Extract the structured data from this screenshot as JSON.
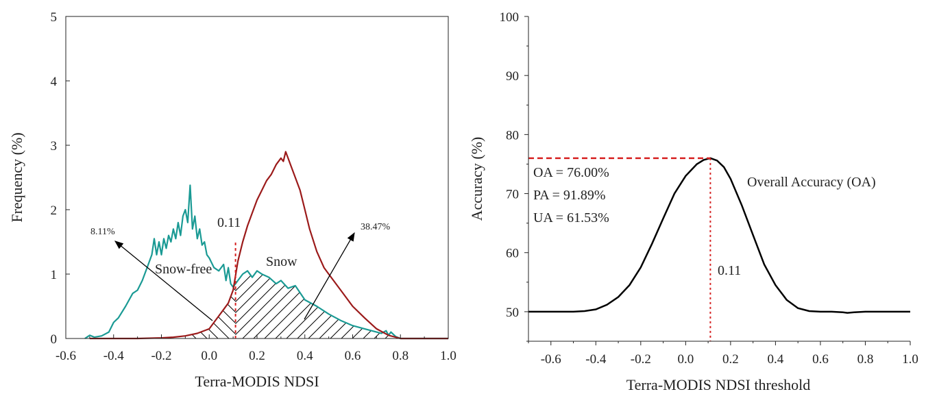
{
  "chart_data": [
    {
      "type": "line",
      "xlabel": "Terra-MODIS NDSI",
      "ylabel": "Frequency (%)",
      "xlim": [
        -0.6,
        1.0
      ],
      "ylim": [
        0,
        5
      ],
      "xticks": [
        "-0.6",
        "-0.4",
        "-0.2",
        "0.0",
        "0.2",
        "0.4",
        "0.6",
        "0.8",
        "1.0"
      ],
      "yticks": [
        "0",
        "1",
        "2",
        "3",
        "4",
        "5"
      ],
      "series": [
        {
          "name": "Snow-free",
          "color": "#1a9a94",
          "x": [
            -0.52,
            -0.5,
            -0.48,
            -0.45,
            -0.42,
            -0.4,
            -0.38,
            -0.35,
            -0.32,
            -0.3,
            -0.28,
            -0.26,
            -0.24,
            -0.23,
            -0.22,
            -0.21,
            -0.2,
            -0.19,
            -0.18,
            -0.17,
            -0.16,
            -0.15,
            -0.14,
            -0.13,
            -0.12,
            -0.11,
            -0.1,
            -0.09,
            -0.08,
            -0.07,
            -0.06,
            -0.05,
            -0.04,
            -0.03,
            -0.02,
            -0.01,
            0.0,
            0.02,
            0.04,
            0.06,
            0.07,
            0.08,
            0.09,
            0.1,
            0.12,
            0.14,
            0.16,
            0.18,
            0.2,
            0.22,
            0.25,
            0.28,
            0.3,
            0.33,
            0.36,
            0.4,
            0.45,
            0.5,
            0.55,
            0.6,
            0.65,
            0.7,
            0.72,
            0.74,
            0.75,
            0.76,
            0.78,
            0.8,
            0.85,
            0.9,
            1.0
          ],
          "y": [
            0.0,
            0.05,
            0.02,
            0.04,
            0.1,
            0.25,
            0.32,
            0.5,
            0.7,
            0.75,
            0.9,
            1.1,
            1.3,
            1.55,
            1.3,
            1.5,
            1.3,
            1.55,
            1.4,
            1.6,
            1.5,
            1.7,
            1.55,
            1.8,
            1.6,
            1.9,
            2.0,
            1.8,
            2.38,
            1.7,
            1.9,
            1.55,
            1.7,
            1.45,
            1.5,
            1.3,
            1.25,
            1.1,
            1.05,
            1.15,
            0.9,
            1.1,
            0.85,
            0.8,
            0.9,
            1.0,
            1.05,
            0.95,
            1.05,
            1.0,
            0.95,
            0.85,
            0.9,
            0.78,
            0.82,
            0.6,
            0.5,
            0.38,
            0.28,
            0.2,
            0.15,
            0.1,
            0.08,
            0.12,
            0.05,
            0.1,
            0.03,
            0.0,
            0.0,
            0.0,
            0.0
          ]
        },
        {
          "name": "Snow",
          "color": "#9b1a1a",
          "x": [
            -0.5,
            -0.4,
            -0.3,
            -0.2,
            -0.15,
            -0.1,
            -0.05,
            0.0,
            0.02,
            0.04,
            0.06,
            0.08,
            0.1,
            0.12,
            0.14,
            0.16,
            0.18,
            0.2,
            0.22,
            0.24,
            0.26,
            0.28,
            0.3,
            0.31,
            0.32,
            0.33,
            0.34,
            0.36,
            0.38,
            0.4,
            0.42,
            0.45,
            0.48,
            0.5,
            0.55,
            0.6,
            0.65,
            0.7,
            0.75,
            0.8,
            0.9,
            1.0
          ],
          "y": [
            0.0,
            0.0,
            0.0,
            0.01,
            0.02,
            0.04,
            0.08,
            0.15,
            0.25,
            0.35,
            0.45,
            0.55,
            0.75,
            1.2,
            1.5,
            1.75,
            1.95,
            2.15,
            2.3,
            2.45,
            2.55,
            2.7,
            2.8,
            2.75,
            2.9,
            2.8,
            2.7,
            2.5,
            2.3,
            2.0,
            1.7,
            1.35,
            1.1,
            1.0,
            0.75,
            0.5,
            0.32,
            0.15,
            0.05,
            0.0,
            0.0,
            0.0
          ]
        }
      ],
      "threshold": 0.11,
      "annotations": {
        "threshold_label": "0.11",
        "snow_free_label": "Snow-free",
        "snow_label": "Snow",
        "pct_left": "8.11%",
        "pct_right": "38.47%"
      }
    },
    {
      "type": "line",
      "xlabel": "Terra-MODIS NDSI threshold",
      "ylabel": "Accuracy (%)",
      "xlim": [
        -0.7,
        1.0
      ],
      "ylim": [
        45,
        100
      ],
      "xticks": [
        "-0.6",
        "-0.4",
        "-0.2",
        "0.0",
        "0.2",
        "0.4",
        "0.6",
        "0.8",
        "1.0"
      ],
      "yticks": [
        "50",
        "60",
        "70",
        "80",
        "90",
        "100"
      ],
      "series": [
        {
          "name": "Overall Accuracy (OA)",
          "color": "#000000",
          "x": [
            -0.7,
            -0.5,
            -0.45,
            -0.4,
            -0.35,
            -0.3,
            -0.25,
            -0.2,
            -0.15,
            -0.1,
            -0.05,
            0.0,
            0.05,
            0.08,
            0.11,
            0.14,
            0.17,
            0.2,
            0.25,
            0.3,
            0.35,
            0.4,
            0.45,
            0.5,
            0.55,
            0.6,
            0.65,
            0.7,
            0.72,
            0.75,
            0.8,
            0.9,
            1.0
          ],
          "y": [
            50,
            50,
            50.1,
            50.4,
            51.2,
            52.5,
            54.5,
            57.5,
            61.5,
            65.8,
            70.0,
            73.0,
            75.0,
            75.7,
            76.0,
            75.6,
            74.5,
            72.5,
            68.0,
            63.0,
            58.0,
            54.5,
            52.0,
            50.6,
            50.1,
            50.0,
            50.0,
            49.9,
            49.8,
            49.9,
            50.0,
            50.0,
            50.0
          ]
        }
      ],
      "threshold": 0.11,
      "peak": 76.0,
      "annotations": {
        "oa": "OA = 76.00%",
        "pa": "PA = 91.89%",
        "ua": "UA = 61.53%",
        "series_label": "Overall Accuracy (OA)",
        "threshold_label": "0.11"
      }
    }
  ]
}
